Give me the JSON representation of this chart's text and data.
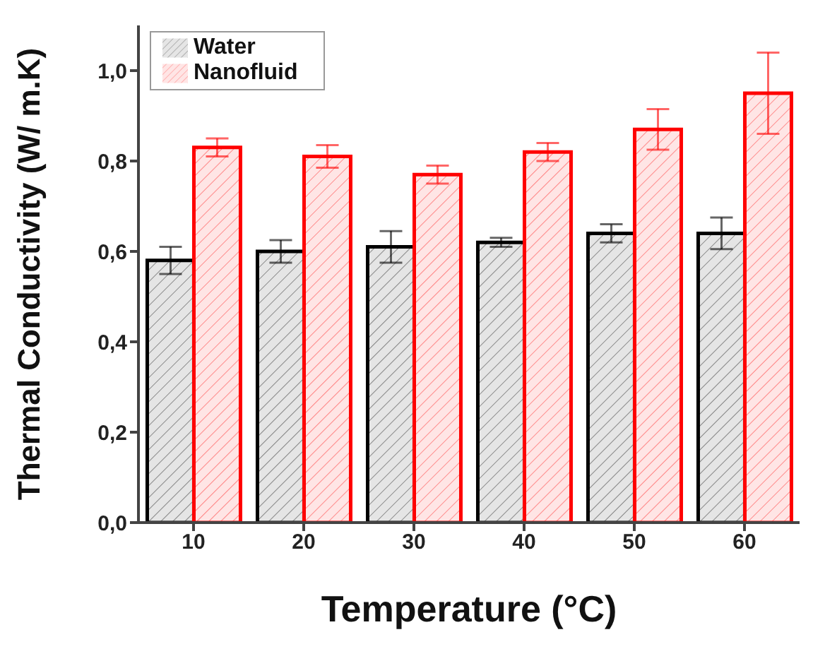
{
  "chart_data": {
    "type": "bar",
    "xlabel": "Temperature (°C)",
    "ylabel": "Thermal Conductivity (W/ m.K)",
    "categories": [
      "10",
      "20",
      "30",
      "40",
      "50",
      "60"
    ],
    "series": [
      {
        "name": "Water",
        "color": "#000000",
        "values": [
          0.58,
          0.6,
          0.61,
          0.62,
          0.64,
          0.64
        ],
        "errors": [
          0.03,
          0.025,
          0.035,
          0.01,
          0.02,
          0.035
        ]
      },
      {
        "name": "Nanofluid",
        "color": "#ff0000",
        "values": [
          0.83,
          0.81,
          0.77,
          0.82,
          0.87,
          0.95
        ],
        "errors": [
          0.02,
          0.025,
          0.02,
          0.02,
          0.045,
          0.09
        ]
      }
    ],
    "ylim": [
      0,
      1.1
    ],
    "yticks": [
      {
        "value": 0,
        "label": "0,0"
      },
      {
        "value": 0.2,
        "label": "0,2"
      },
      {
        "value": 0.4,
        "label": "0,4"
      },
      {
        "value": 0.6,
        "label": "0,6"
      },
      {
        "value": 0.8,
        "label": "0,8"
      },
      {
        "value": 1.0,
        "label": "1,0"
      }
    ],
    "grid": false,
    "legend": "top left"
  }
}
